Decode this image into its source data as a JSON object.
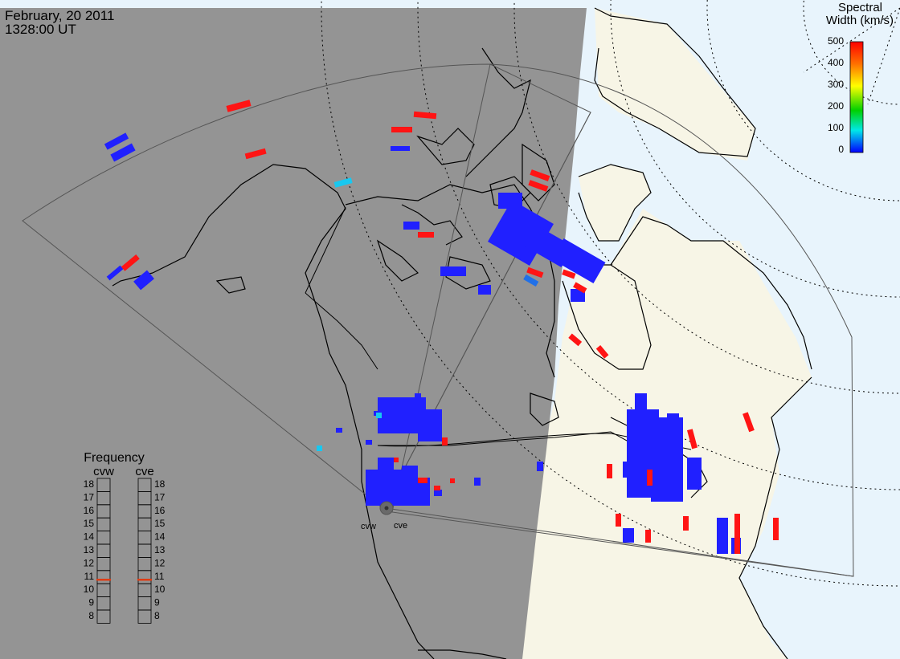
{
  "header": {
    "date": "February, 20 2011",
    "time": "1328:00 UT"
  },
  "colorbar": {
    "title_line1": "Spectral",
    "title_line2": "Width (km/s)",
    "ticks": [
      "500",
      "400",
      "300",
      "200",
      "100",
      "0"
    ],
    "gradient_colors": [
      "#ff0000",
      "#ffa500",
      "#ffff00",
      "#00d000",
      "#00e8e8",
      "#0000ff"
    ]
  },
  "frequency_panel": {
    "title": "Frequency",
    "columns": [
      {
        "label": "cvw",
        "value_mhz": 10.8
      },
      {
        "label": "cve",
        "value_mhz": 10.8
      }
    ],
    "scale": [
      "18",
      "17",
      "16",
      "15",
      "14",
      "13",
      "12",
      "11",
      "10",
      "9",
      "8"
    ]
  },
  "stations": {
    "west_label": "cvw",
    "east_label": "cve"
  },
  "colors": {
    "night_shade": "#949494",
    "day_land": "#f7f5e6",
    "day_ocean": "#e8f4fc",
    "echo_low": "#2020ff",
    "echo_high": "#ff1414",
    "echo_mid": "#18c8f0",
    "frequency_marker": "#e03c14"
  }
}
